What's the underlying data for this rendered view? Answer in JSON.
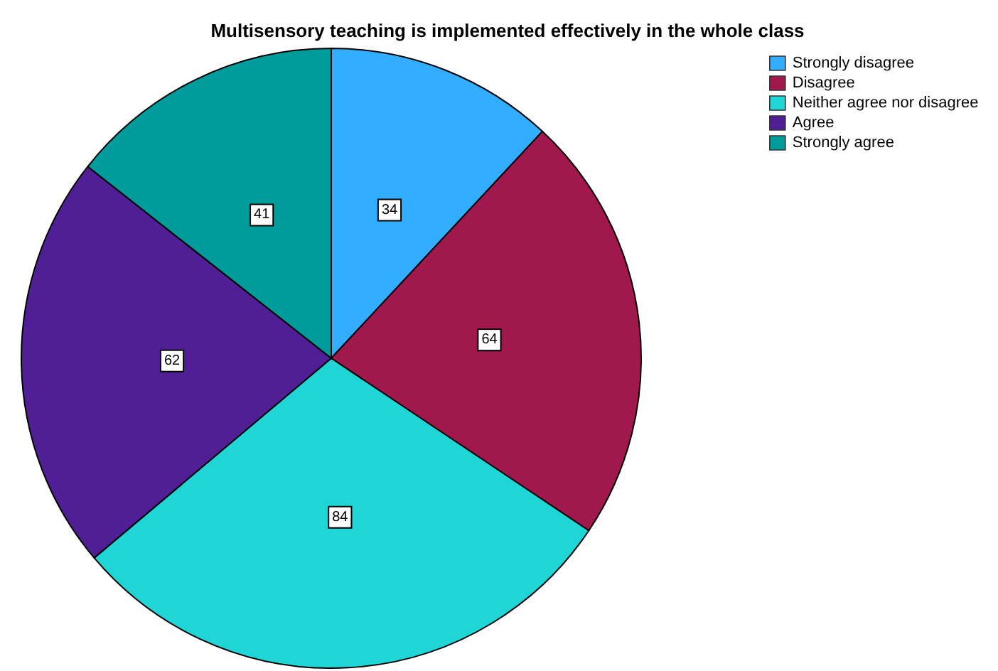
{
  "chart_data": {
    "type": "pie",
    "title": "Multisensory teaching is implemented effectively in the whole class",
    "categories": [
      "Strongly disagree",
      "Disagree",
      "Neither agree nor disagree",
      "Agree",
      "Strongly agree"
    ],
    "values": [
      34,
      64,
      84,
      62,
      41
    ],
    "colors": [
      "#33adff",
      "#a0184e",
      "#20d5d5",
      "#511f95",
      "#009b9b"
    ],
    "data_labels": true,
    "legend": "top right"
  }
}
